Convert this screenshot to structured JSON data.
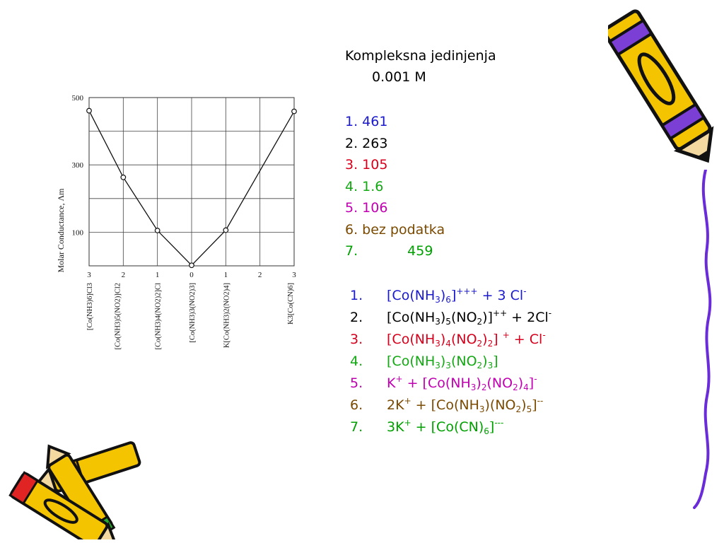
{
  "heading": {
    "line1": "Kompleksna jedinjenja",
    "line2": "0.001 M"
  },
  "values": [
    {
      "num": "1.",
      "value": "461",
      "color": "#1a1acc"
    },
    {
      "num": "2.",
      "value": "263",
      "color": "#000000"
    },
    {
      "num": "3.",
      "value": "105",
      "color": "#d6001c"
    },
    {
      "num": "4.",
      "value": "1.6",
      "color": "#12a812"
    },
    {
      "num": "5.",
      "value": "106",
      "color": "#c000b0"
    },
    {
      "num": "6.",
      "value": "bez podatka",
      "color": "#7a4a00"
    },
    {
      "num": "7.",
      "value": "459",
      "color": "#00a000"
    }
  ],
  "formulas": [
    {
      "num": "1.",
      "color": "#1a1acc",
      "tokens": [
        [
          "b",
          "["
        ],
        [
          "t",
          "Co(NH"
        ],
        [
          "s",
          "3"
        ],
        [
          "t",
          ")"
        ],
        [
          "s",
          "6"
        ],
        [
          "b",
          "]"
        ],
        [
          "p",
          "+++"
        ],
        [
          "t",
          " + 3 Cl"
        ],
        [
          "p",
          "-"
        ]
      ]
    },
    {
      "num": "2.",
      "color": "#000000",
      "tokens": [
        [
          "b",
          "["
        ],
        [
          "t",
          "Co(NH"
        ],
        [
          "s",
          "3"
        ],
        [
          "t",
          ")"
        ],
        [
          "s",
          "5"
        ],
        [
          "t",
          "(NO"
        ],
        [
          "s",
          "2"
        ],
        [
          "t",
          ")"
        ],
        [
          "b",
          "]"
        ],
        [
          "p",
          "++"
        ],
        [
          "t",
          " + 2Cl"
        ],
        [
          "p",
          "-"
        ]
      ]
    },
    {
      "num": "3.",
      "color": "#d6001c",
      "tokens": [
        [
          "b",
          "["
        ],
        [
          "t",
          "Co(NH"
        ],
        [
          "s",
          "3"
        ],
        [
          "t",
          ")"
        ],
        [
          "s",
          "4"
        ],
        [
          "t",
          "(NO"
        ],
        [
          "s",
          "2"
        ],
        [
          "t",
          ")"
        ],
        [
          "s",
          "2"
        ],
        [
          "b",
          "]"
        ],
        [
          "t",
          " "
        ],
        [
          "p",
          "+"
        ],
        [
          "t",
          " + Cl"
        ],
        [
          "p",
          "-"
        ]
      ]
    },
    {
      "num": "4.",
      "color": "#12a812",
      "tokens": [
        [
          "b",
          "["
        ],
        [
          "t",
          "Co(NH"
        ],
        [
          "s",
          "3"
        ],
        [
          "t",
          ")"
        ],
        [
          "s",
          "3"
        ],
        [
          "t",
          "(NO"
        ],
        [
          "s",
          "2"
        ],
        [
          "t",
          ")"
        ],
        [
          "s",
          "3"
        ],
        [
          "b",
          "]"
        ]
      ]
    },
    {
      "num": "5.",
      "color": "#c000b0",
      "tokens": [
        [
          "t",
          "K"
        ],
        [
          "p",
          "+"
        ],
        [
          "t",
          " + "
        ],
        [
          "b",
          "["
        ],
        [
          "t",
          "Co(NH"
        ],
        [
          "s",
          "3"
        ],
        [
          "t",
          ")"
        ],
        [
          "s",
          "2"
        ],
        [
          "t",
          "(NO"
        ],
        [
          "s",
          "2"
        ],
        [
          "t",
          ")"
        ],
        [
          "s",
          "4"
        ],
        [
          "b",
          "]"
        ],
        [
          "p",
          "-"
        ]
      ]
    },
    {
      "num": "6.",
      "color": "#7a4a00",
      "tokens": [
        [
          "t",
          "2K"
        ],
        [
          "p",
          "+"
        ],
        [
          "t",
          " + "
        ],
        [
          "b",
          "["
        ],
        [
          "t",
          "Co(NH"
        ],
        [
          "s",
          "3"
        ],
        [
          "t",
          ")(NO"
        ],
        [
          "s",
          "2"
        ],
        [
          "t",
          ")"
        ],
        [
          "s",
          "5"
        ],
        [
          "b",
          "]"
        ],
        [
          "p",
          "--"
        ]
      ]
    },
    {
      "num": "7.",
      "color": "#00a000",
      "tokens": [
        [
          "t",
          "3K"
        ],
        [
          "p",
          "+"
        ],
        [
          "t",
          " + "
        ],
        [
          "b",
          "["
        ],
        [
          "t",
          "Co(CN)"
        ],
        [
          "s",
          "6"
        ],
        [
          "b",
          "]"
        ],
        [
          "p",
          "---"
        ]
      ]
    }
  ],
  "chart_data": {
    "type": "line",
    "title": "",
    "ylabel": "Molar Conductance, Λm",
    "xlabel": "",
    "ylim": [
      0,
      500
    ],
    "y_ticks": [
      100,
      300,
      500
    ],
    "grid": true,
    "x_tick_labels": [
      "3",
      "2",
      "1",
      "0",
      "1",
      "2",
      "3"
    ],
    "categories": [
      "[Co(NH3)6]Cl3",
      "[Co(NH3)5(NO2)]Cl2",
      "[Co(NH3)4(NO2)2]Cl",
      "[Co(NH3)3(NO2)3]",
      "K[Co(NH3)2(NO2)4]",
      "",
      "K3[Co(CN)6]"
    ],
    "series": [
      {
        "values": [
          461,
          263,
          105,
          1.6,
          106,
          null,
          459
        ]
      }
    ]
  },
  "decorations": {
    "crayon_top_right": "crayon-icon",
    "crayons_bottom_left": "crayons-icon",
    "border_line_right": "purple-wavy-line"
  }
}
